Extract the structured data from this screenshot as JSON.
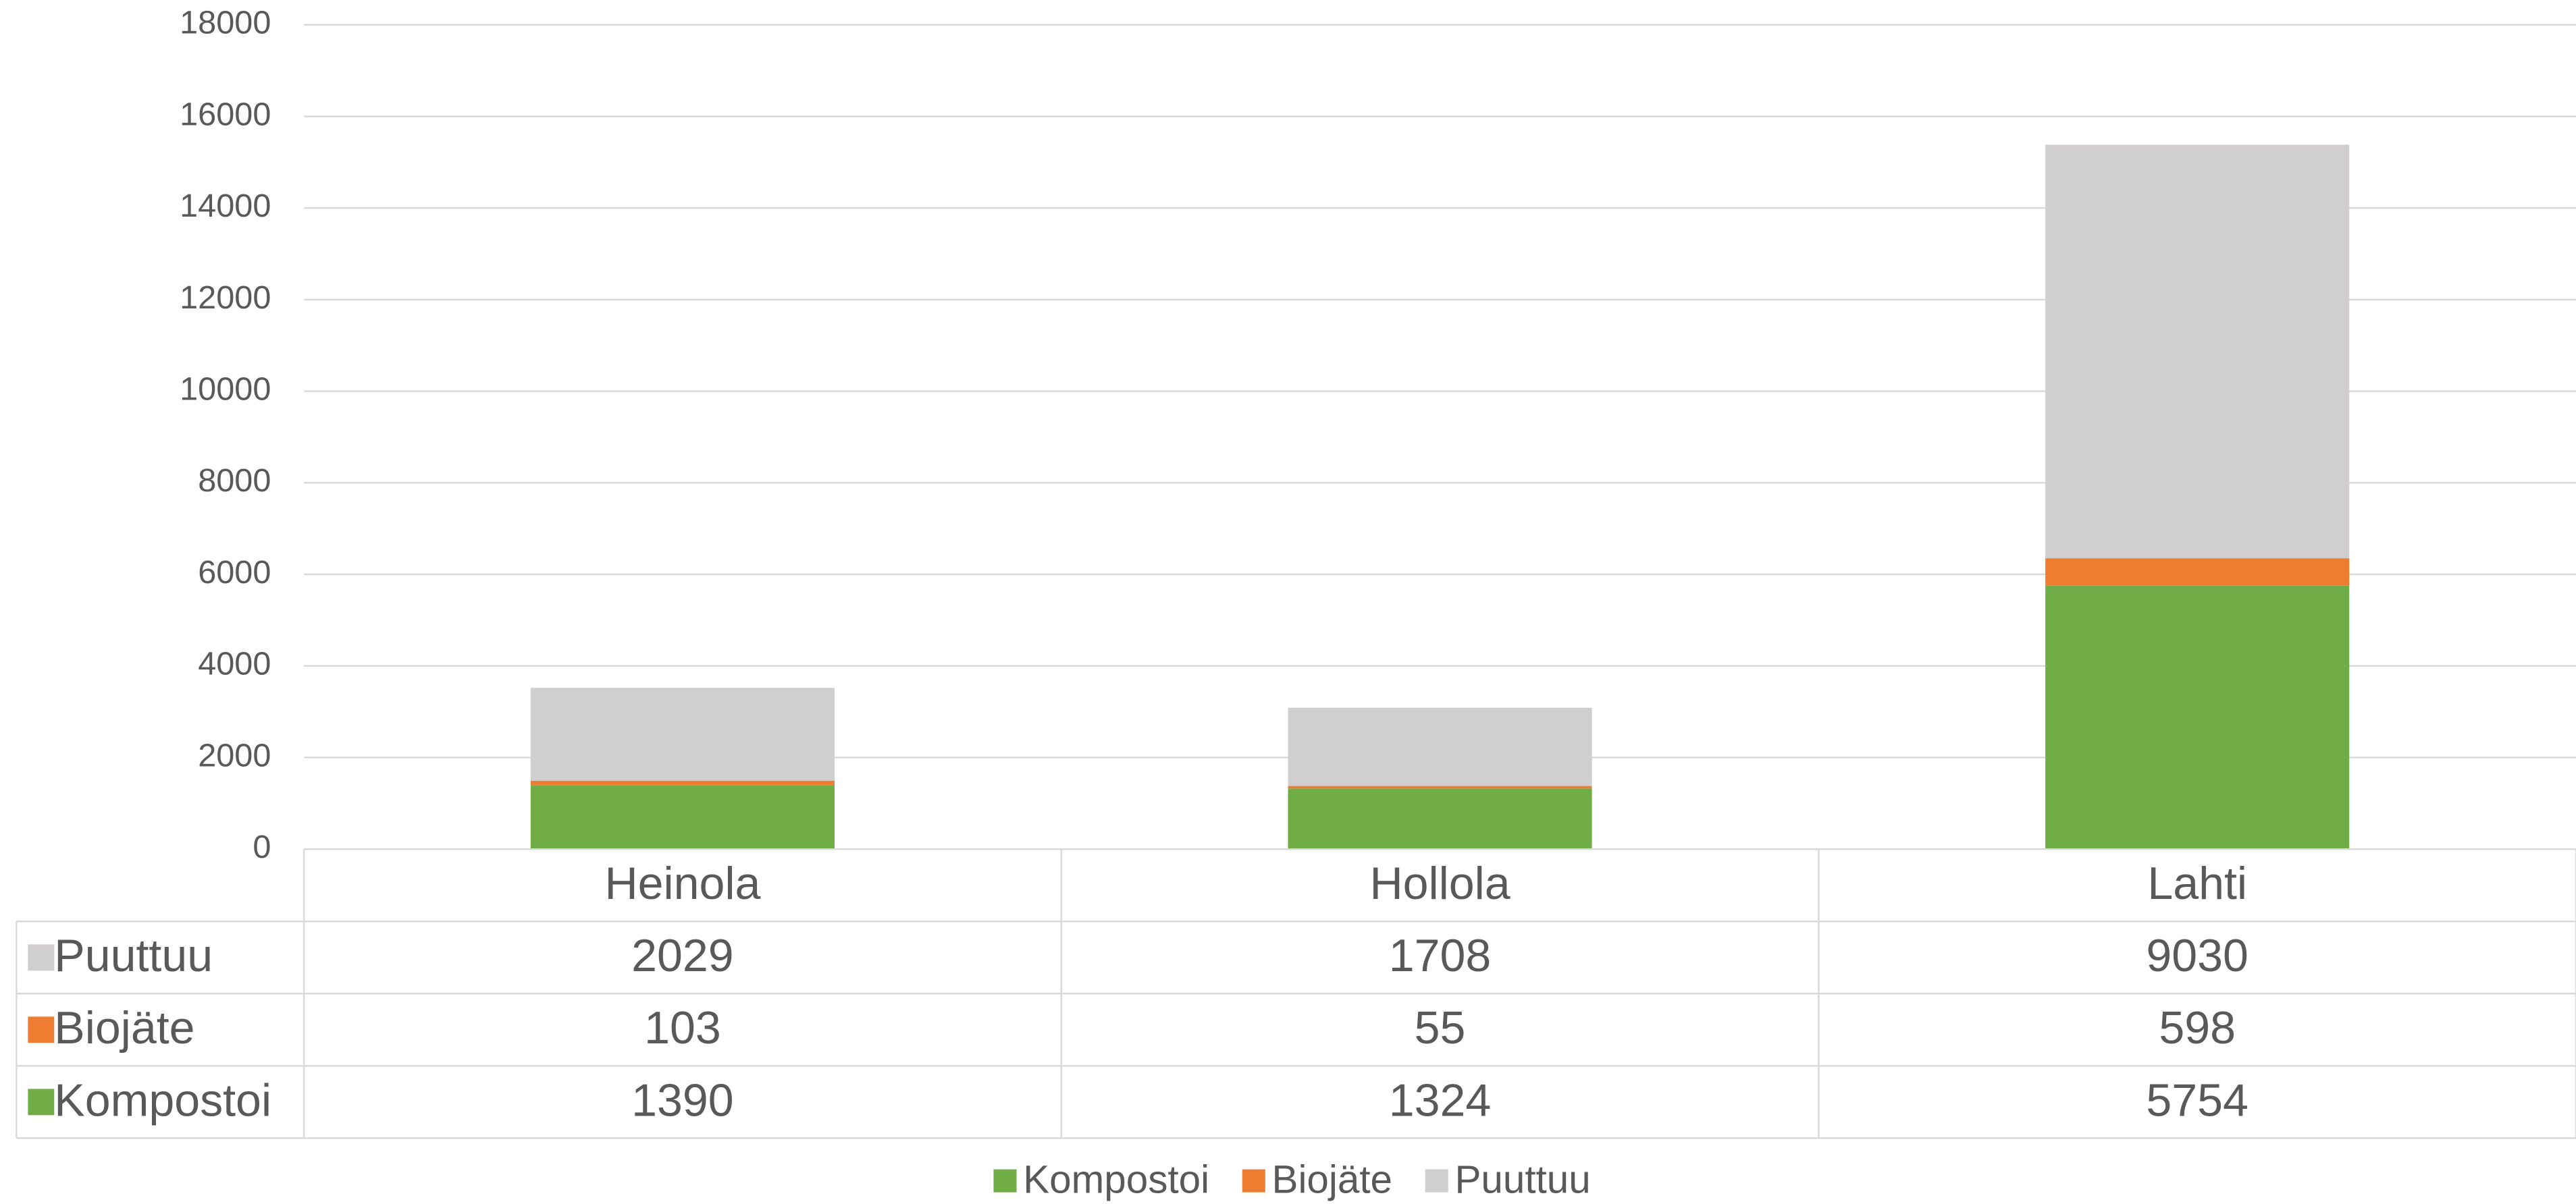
{
  "chart_data": {
    "type": "stacked_bar",
    "categories": [
      "Heinola",
      "Hollola",
      "Lahti"
    ],
    "series": [
      {
        "name": "Kompostoi",
        "color": "#70ad47",
        "values": [
          1390,
          1324,
          5754
        ]
      },
      {
        "name": "Biojäte",
        "color": "#ed7d31",
        "values": [
          103,
          55,
          598
        ]
      },
      {
        "name": "Puuttuu",
        "color": "#d0cece",
        "values": [
          2029,
          1708,
          9030
        ]
      }
    ],
    "ylim": [
      0,
      18000
    ],
    "yticks": [
      0,
      2000,
      4000,
      6000,
      8000,
      10000,
      12000,
      14000,
      16000,
      18000
    ],
    "grid": true,
    "legend": "bottom"
  }
}
